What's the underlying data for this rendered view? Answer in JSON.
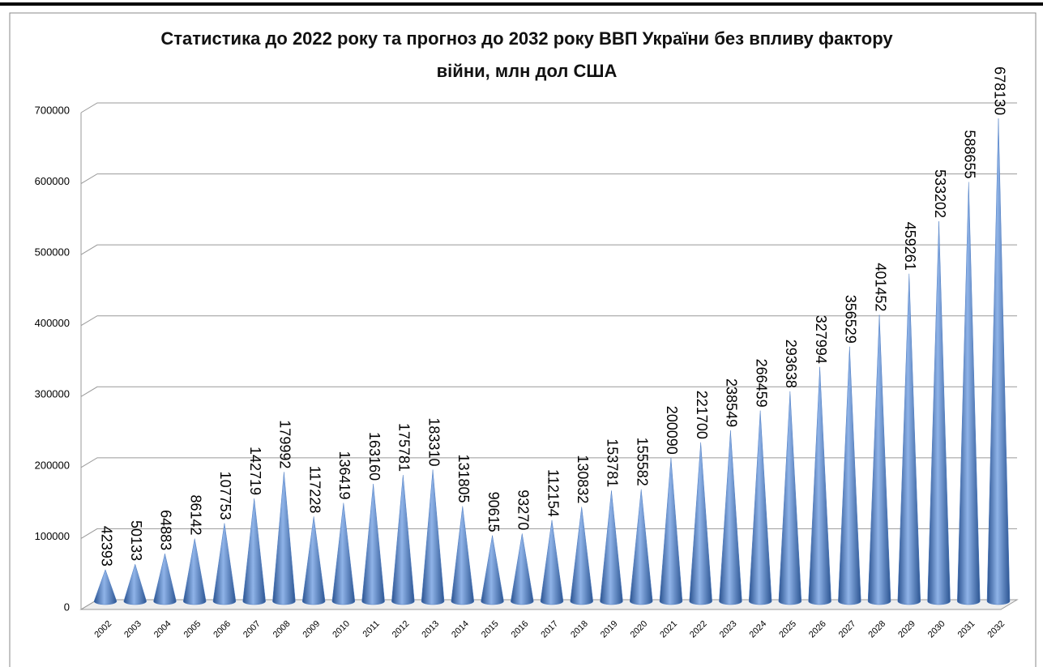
{
  "chart_data": {
    "type": "cone-bar",
    "title": "Статистика до 2022 року та прогноз до 2032 року ВВП України без впливу фактору війни, млн дол США",
    "categories": [
      "2002",
      "2003",
      "2004",
      "2005",
      "2006",
      "2007",
      "2008",
      "2009",
      "2010",
      "2011",
      "2012",
      "2013",
      "2014",
      "2015",
      "2016",
      "2017",
      "2018",
      "2019",
      "2020",
      "2021",
      "2022",
      "2023",
      "2024",
      "2025",
      "2026",
      "2027",
      "2028",
      "2029",
      "2030",
      "2031",
      "2032"
    ],
    "values": [
      42393,
      50133,
      64883,
      86142,
      107753,
      142719,
      179992,
      117228,
      136419,
      163160,
      175781,
      183310,
      131805,
      90615,
      93270,
      112154,
      130832,
      153781,
      155582,
      200090,
      221700,
      238549,
      266459,
      293638,
      327994,
      356529,
      401452,
      459261,
      533202,
      588655,
      678130
    ],
    "color": "#4f7ec4",
    "ylim": [
      0,
      700000
    ],
    "yticks": [
      0,
      100000,
      200000,
      300000,
      400000,
      500000,
      600000,
      700000
    ],
    "grid": true
  }
}
